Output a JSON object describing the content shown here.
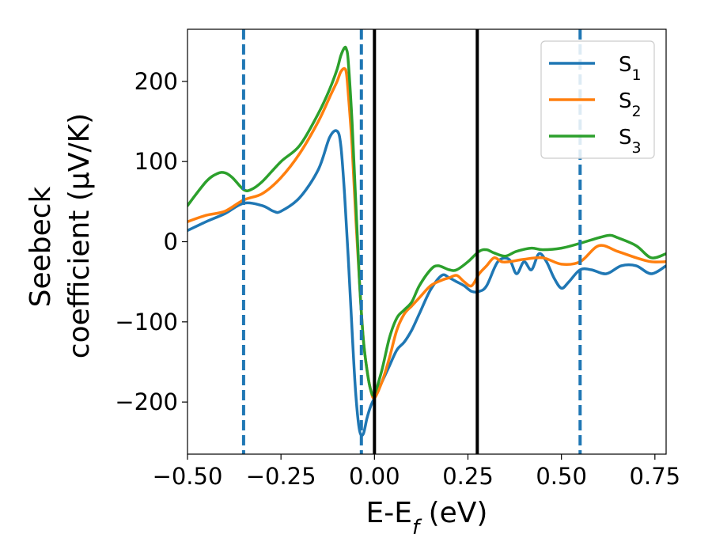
{
  "chart_data": {
    "type": "line",
    "title": "",
    "xlabel": "E-E",
    "xlabel_sub": "f",
    "xlabel_unit": " (eV)",
    "ylabel_line1": "Seebeck",
    "ylabel_line2": "coefficient  (μV/K)",
    "xlim": [
      -0.5,
      0.78
    ],
    "ylim": [
      -265,
      265
    ],
    "xticks": [
      {
        "value": -0.5,
        "label": "−0.50"
      },
      {
        "value": -0.25,
        "label": "−0.25"
      },
      {
        "value": 0.0,
        "label": "0.00"
      },
      {
        "value": 0.25,
        "label": "0.25"
      },
      {
        "value": 0.5,
        "label": "0.50"
      },
      {
        "value": 0.75,
        "label": "0.75"
      }
    ],
    "yticks": [
      {
        "value": -200,
        "label": "−200"
      },
      {
        "value": -100,
        "label": "−100"
      },
      {
        "value": 0,
        "label": "0"
      },
      {
        "value": 100,
        "label": "100"
      },
      {
        "value": 200,
        "label": "200"
      }
    ],
    "grid": false,
    "legend_position": "top-right",
    "vlines": [
      {
        "x": -0.35,
        "style": "dashed",
        "color": "#1f77b4"
      },
      {
        "x": -0.035,
        "style": "dashed",
        "color": "#1f77b4"
      },
      {
        "x": 0.0,
        "style": "solid",
        "color": "#000000"
      },
      {
        "x": 0.275,
        "style": "solid",
        "color": "#000000"
      },
      {
        "x": 0.55,
        "style": "dashed",
        "color": "#1f77b4"
      }
    ],
    "series": [
      {
        "name": "S",
        "sub": "1",
        "color": "#1f77b4",
        "x": [
          -0.5,
          -0.45,
          -0.4,
          -0.35,
          -0.3,
          -0.27,
          -0.25,
          -0.2,
          -0.15,
          -0.12,
          -0.1,
          -0.09,
          -0.08,
          -0.07,
          -0.06,
          -0.05,
          -0.04,
          -0.03,
          -0.02,
          -0.01,
          0.0,
          0.02,
          0.04,
          0.06,
          0.08,
          0.1,
          0.12,
          0.15,
          0.18,
          0.2,
          0.22,
          0.24,
          0.26,
          0.28,
          0.3,
          0.33,
          0.36,
          0.38,
          0.4,
          0.42,
          0.44,
          0.46,
          0.48,
          0.5,
          0.52,
          0.55,
          0.58,
          0.62,
          0.66,
          0.7,
          0.74,
          0.78
        ],
        "y": [
          14,
          25,
          35,
          48,
          45,
          38,
          38,
          55,
          90,
          130,
          138,
          120,
          60,
          -20,
          -110,
          -190,
          -235,
          -240,
          -220,
          -205,
          -195,
          -175,
          -155,
          -135,
          -125,
          -110,
          -90,
          -60,
          -42,
          -45,
          -50,
          -55,
          -62,
          -62,
          -55,
          -25,
          -22,
          -40,
          -25,
          -35,
          -15,
          -25,
          -45,
          -58,
          -50,
          -35,
          -35,
          -40,
          -30,
          -30,
          -40,
          -30
        ]
      },
      {
        "name": "S",
        "sub": "2",
        "color": "#ff7f0e",
        "x": [
          -0.5,
          -0.45,
          -0.4,
          -0.35,
          -0.3,
          -0.25,
          -0.2,
          -0.15,
          -0.12,
          -0.1,
          -0.09,
          -0.08,
          -0.075,
          -0.07,
          -0.06,
          -0.05,
          -0.04,
          -0.03,
          -0.02,
          -0.01,
          0.0,
          0.02,
          0.04,
          0.06,
          0.08,
          0.1,
          0.12,
          0.15,
          0.18,
          0.2,
          0.22,
          0.24,
          0.26,
          0.28,
          0.3,
          0.32,
          0.34,
          0.36,
          0.4,
          0.45,
          0.5,
          0.55,
          0.6,
          0.65,
          0.7,
          0.74,
          0.78
        ],
        "y": [
          25,
          33,
          38,
          52,
          60,
          80,
          110,
          150,
          180,
          200,
          212,
          216,
          210,
          185,
          120,
          30,
          -50,
          -120,
          -160,
          -185,
          -195,
          -175,
          -145,
          -110,
          -90,
          -80,
          -70,
          -55,
          -48,
          -45,
          -42,
          -50,
          -55,
          -40,
          -30,
          -20,
          -25,
          -25,
          -22,
          -20,
          -28,
          -25,
          -5,
          -12,
          -20,
          -25,
          -25
        ]
      },
      {
        "name": "S",
        "sub": "3",
        "color": "#2ca02c",
        "x": [
          -0.5,
          -0.45,
          -0.42,
          -0.4,
          -0.38,
          -0.35,
          -0.33,
          -0.3,
          -0.25,
          -0.2,
          -0.15,
          -0.12,
          -0.1,
          -0.09,
          -0.08,
          -0.075,
          -0.07,
          -0.06,
          -0.05,
          -0.04,
          -0.03,
          -0.02,
          -0.01,
          0.0,
          0.02,
          0.04,
          0.06,
          0.08,
          0.1,
          0.12,
          0.15,
          0.17,
          0.2,
          0.22,
          0.25,
          0.28,
          0.3,
          0.32,
          0.35,
          0.38,
          0.42,
          0.45,
          0.5,
          0.55,
          0.6,
          0.63,
          0.65,
          0.7,
          0.74,
          0.78
        ],
        "y": [
          45,
          75,
          85,
          86,
          80,
          65,
          65,
          75,
          100,
          120,
          160,
          190,
          215,
          232,
          242,
          240,
          225,
          150,
          50,
          -50,
          -120,
          -160,
          -185,
          -190,
          -160,
          -120,
          -95,
          -85,
          -75,
          -55,
          -35,
          -30,
          -35,
          -35,
          -25,
          -12,
          -10,
          -14,
          -18,
          -12,
          -8,
          -10,
          -8,
          -2,
          5,
          8,
          5,
          -5,
          -20,
          -15
        ]
      }
    ]
  }
}
